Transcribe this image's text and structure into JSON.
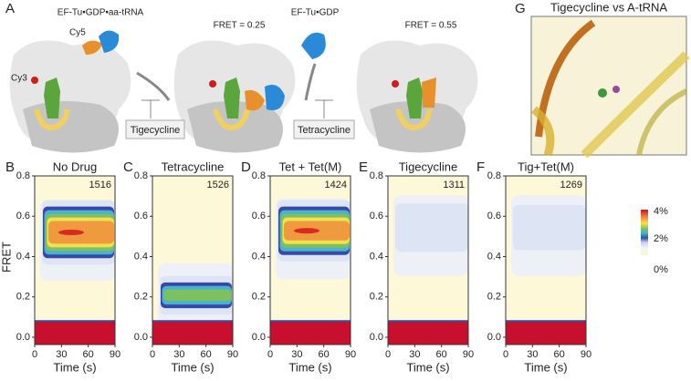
{
  "schematic": {
    "panel": "A",
    "labels": {
      "trna": "EF-Tu•GDP•aa-tRNA",
      "cy5": "Cy5",
      "cy3": "Cy3",
      "fret1": "FRET = 0.25",
      "eftu": "EF-Tu•GDP",
      "fret2": "FRET = 0.55",
      "drug1": "Tigecycline",
      "drug2": "Tetracycline"
    }
  },
  "structure": {
    "panel": "G",
    "title": "Tigecycline vs A-tRNA"
  },
  "axes": {
    "y_label": "FRET",
    "x_label": "Time (s)",
    "yticks": [
      "0.0",
      "0.2",
      "0.4",
      "0.6",
      "0.8"
    ],
    "xticks": [
      "0",
      "30",
      "60",
      "90"
    ]
  },
  "colorbar": {
    "labels": [
      "4%",
      "2%",
      "0%"
    ]
  },
  "panels": [
    {
      "letter": "B",
      "title": "No Drug",
      "count": "1516"
    },
    {
      "letter": "C",
      "title": "Tetracycline",
      "count": "1526"
    },
    {
      "letter": "D",
      "title": "Tet + Tet(M)",
      "count": "1424"
    },
    {
      "letter": "E",
      "title": "Tigecycline",
      "count": "1311"
    },
    {
      "letter": "F",
      "title": "Tig+Tet(M)",
      "count": "1269"
    }
  ]
}
